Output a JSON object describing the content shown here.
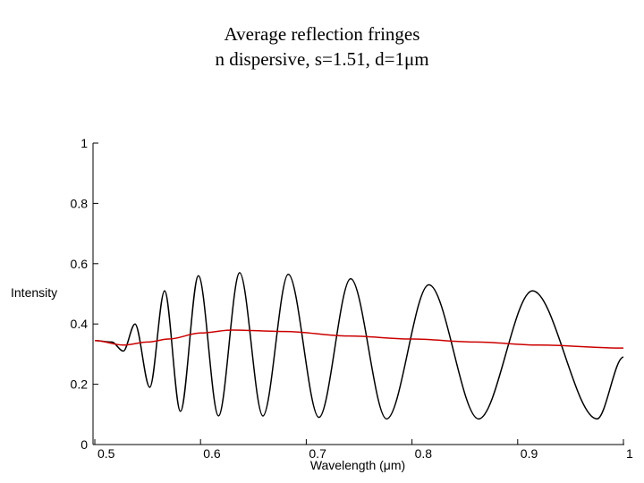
{
  "chart_data": {
    "type": "line",
    "title": "Average reflection fringes",
    "subtitle": "n dispersive, s=1.51, d=1μm",
    "ylabel": "Intensity",
    "xlabel": "Wavelength (μm)",
    "xlim": [
      0.5,
      1.0
    ],
    "ylim": [
      0,
      1
    ],
    "xticks": [
      0.5,
      0.6,
      0.7,
      0.8,
      0.9,
      1
    ],
    "yticks": [
      0,
      0.2,
      0.4,
      0.6,
      0.8,
      1
    ],
    "series": [
      {
        "color": "#000000",
        "x": [
          0.5,
          0.516,
          0.527,
          0.538,
          0.552,
          0.566,
          0.581,
          0.598,
          0.617,
          0.637,
          0.659,
          0.683,
          0.712,
          0.742,
          0.776,
          0.816,
          0.863,
          0.914,
          0.975,
          1.0
        ],
        "values": [
          0.345,
          0.34,
          0.31,
          0.4,
          0.19,
          0.51,
          0.11,
          0.56,
          0.095,
          0.57,
          0.095,
          0.565,
          0.09,
          0.55,
          0.085,
          0.53,
          0.085,
          0.51,
          0.085,
          0.29
        ]
      },
      {
        "color": "#cc0000",
        "x": [
          0.5,
          0.527,
          0.55,
          0.57,
          0.6,
          0.63,
          0.68,
          0.74,
          0.8,
          0.86,
          0.92,
          1.0
        ],
        "values": [
          0.345,
          0.33,
          0.34,
          0.35,
          0.37,
          0.38,
          0.375,
          0.36,
          0.35,
          0.34,
          0.33,
          0.32
        ]
      }
    ]
  }
}
